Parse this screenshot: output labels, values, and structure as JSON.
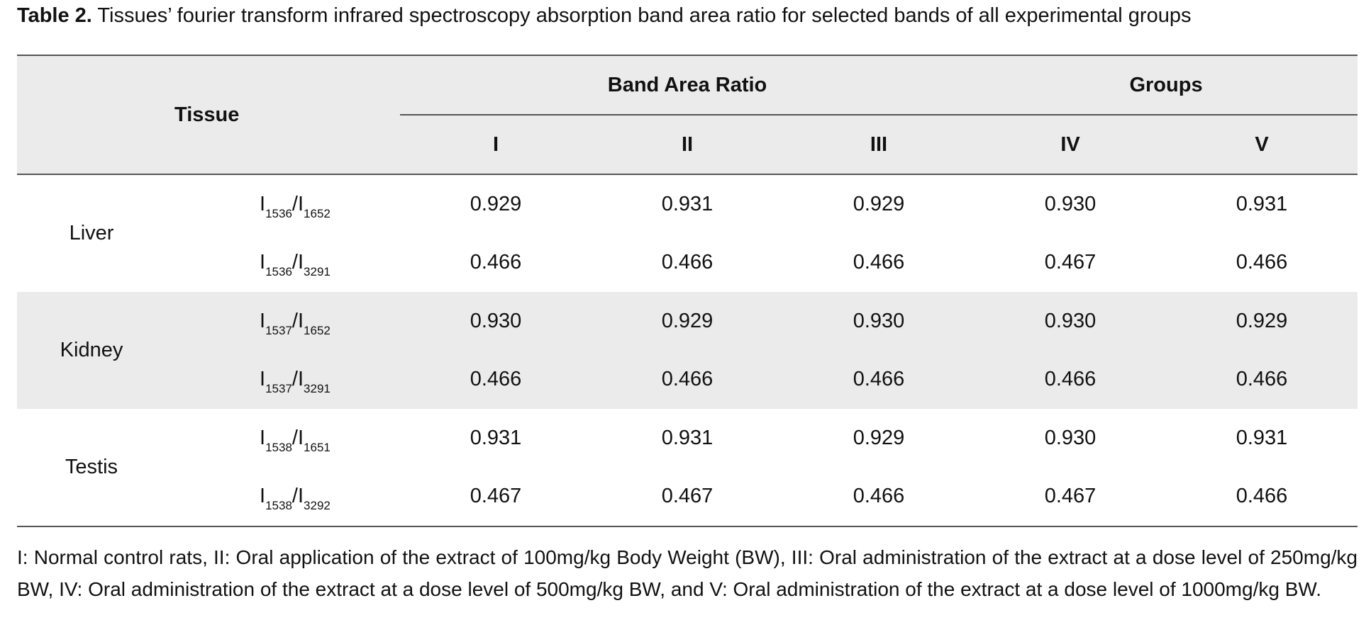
{
  "caption": {
    "label": "Table 2.",
    "text": " Tissues’ fourier transform infrared spectroscopy absorption band area ratio for selected bands of all experimental groups"
  },
  "header": {
    "tissue": "Tissue",
    "band_area_ratio": "Band Area Ratio",
    "groups": "Groups",
    "group_labels": [
      "I",
      "II",
      "III",
      "IV",
      "V"
    ]
  },
  "rows": [
    {
      "tissue": "Liver",
      "num_a": "1536",
      "num_b": "1652",
      "values": [
        "0.929",
        "0.931",
        "0.929",
        "0.930",
        "0.931"
      ]
    },
    {
      "tissue": "",
      "num_a": "1536",
      "num_b": "3291",
      "values": [
        "0.466",
        "0.466",
        "0.466",
        "0.467",
        "0.466"
      ]
    },
    {
      "tissue": "Kidney",
      "num_a": "1537",
      "num_b": "1652",
      "values": [
        "0.930",
        "0.929",
        "0.930",
        "0.930",
        "0.929"
      ]
    },
    {
      "tissue": "",
      "num_a": "1537",
      "num_b": "3291",
      "values": [
        "0.466",
        "0.466",
        "0.466",
        "0.466",
        "0.466"
      ]
    },
    {
      "tissue": "Testis",
      "num_a": "1538",
      "num_b": "1651",
      "values": [
        "0.931",
        "0.931",
        "0.929",
        "0.930",
        "0.931"
      ]
    },
    {
      "tissue": "",
      "num_a": "1538",
      "num_b": "3292",
      "values": [
        "0.467",
        "0.467",
        "0.466",
        "0.467",
        "0.466"
      ]
    }
  ],
  "ratio_symbol": "I",
  "ratio_separator": "/",
  "footnote": "I: Normal control rats, II: Oral application of the extract of 100mg/kg Body Weight (BW), III: Oral administration of the extract at a dose level of 250mg/kg BW, IV: Oral administration of the extract at a dose level of 500mg/kg BW, and V: Oral administration of the extract at a dose level of 1000mg/kg BW.",
  "colors": {
    "header_bg": "#ebebeb",
    "shaded_row_bg": "#ebebeb",
    "rule": "#555555"
  }
}
